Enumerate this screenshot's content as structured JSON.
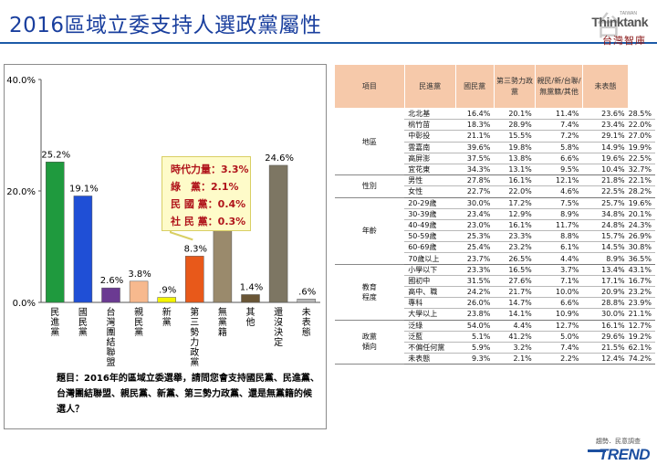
{
  "page": {
    "title": "2016區域立委支持人選政黨屬性",
    "brand_mark": "台",
    "brand_en": "Thinktank",
    "brand_en_small": "TAIWAN",
    "brand_zh": "台灣智庫",
    "footer_source": "趨勢．民意調查",
    "footer_logo": "TREND"
  },
  "chart_data": {
    "type": "bar",
    "categories": [
      "民進黨",
      "國民黨",
      "台灣團結聯盟",
      "親民黨",
      "新黨",
      "第三勢力政黨",
      "無黨籍",
      "其他",
      "還沒決定",
      "未表態"
    ],
    "values": [
      25.2,
      19.1,
      2.6,
      3.8,
      0.9,
      8.3,
      13.4,
      1.4,
      24.6,
      0.6
    ],
    "value_labels": [
      "25.2%",
      "19.1%",
      "2.6%",
      "3.8%",
      ".9%",
      "8.3%",
      "13.4%",
      "1.4%",
      "24.6%",
      ".6%"
    ],
    "colors": [
      "#1f9a3e",
      "#1f4fd6",
      "#6b3a92",
      "#f7b98e",
      "#f4f400",
      "#e8591a",
      "#9a8a6c",
      "#6a5636",
      "#7d7663",
      "#b7b7b7"
    ],
    "ylim": [
      0,
      40
    ],
    "yticks": [
      0,
      20,
      40
    ],
    "ytick_labels": [
      "0.0%",
      "20.0%",
      "40.0%"
    ],
    "grid": false,
    "callout": {
      "lines": [
        "時代力量：3.3%",
        "綠　黨：2.1%",
        "民 國 黨：0.4%",
        "社 民 黨：0.3%"
      ],
      "points_to": "第三勢力政黨"
    },
    "question": "題目：2016年的區域立委選舉，請問您會支持國民黨、民進黨、台灣團結聯盟、親民黨、新黨、第三勢力政黨、還是無黨籍的候選人？"
  },
  "table": {
    "headers": [
      "項目",
      "民進黨",
      "國民黨",
      "第三勢力政黨",
      "親民/新/台聯/無黨籍/其他",
      "未表態"
    ],
    "groups": [
      {
        "name": "地區",
        "rows": [
          [
            "北北基",
            "16.4%",
            "20.1%",
            "11.4%",
            "23.6%",
            "28.5%"
          ],
          [
            "桃竹苗",
            "18.3%",
            "28.9%",
            "7.4%",
            "23.4%",
            "22.0%"
          ],
          [
            "中彰投",
            "21.1%",
            "15.5%",
            "7.2%",
            "29.1%",
            "27.0%"
          ],
          [
            "雲嘉南",
            "39.6%",
            "19.8%",
            "5.8%",
            "14.9%",
            "19.9%"
          ],
          [
            "高屏澎",
            "37.5%",
            "13.8%",
            "6.6%",
            "19.6%",
            "22.5%"
          ],
          [
            "宜花東",
            "34.3%",
            "13.1%",
            "9.5%",
            "10.4%",
            "32.7%"
          ]
        ]
      },
      {
        "name": "性別",
        "rows": [
          [
            "男性",
            "27.8%",
            "16.1%",
            "12.1%",
            "21.8%",
            "22.1%"
          ],
          [
            "女性",
            "22.7%",
            "22.0%",
            "4.6%",
            "22.5%",
            "28.2%"
          ]
        ]
      },
      {
        "name": "年齡",
        "rows": [
          [
            "20-29歲",
            "30.0%",
            "17.2%",
            "7.5%",
            "25.7%",
            "19.6%"
          ],
          [
            "30-39歲",
            "23.4%",
            "12.9%",
            "8.9%",
            "34.8%",
            "20.1%"
          ],
          [
            "40-49歲",
            "23.0%",
            "16.1%",
            "11.7%",
            "24.8%",
            "24.3%"
          ],
          [
            "50-59歲",
            "25.3%",
            "23.3%",
            "8.8%",
            "15.7%",
            "26.9%"
          ],
          [
            "60-69歲",
            "25.4%",
            "23.2%",
            "6.1%",
            "14.5%",
            "30.8%"
          ],
          [
            "70歲以上",
            "23.7%",
            "26.5%",
            "4.4%",
            "8.9%",
            "36.5%"
          ]
        ]
      },
      {
        "name": "教育程度",
        "rows": [
          [
            "小學以下",
            "23.3%",
            "16.5%",
            "3.7%",
            "13.4%",
            "43.1%"
          ],
          [
            "國初中",
            "31.5%",
            "27.6%",
            "7.1%",
            "17.1%",
            "16.7%"
          ],
          [
            "高中、職",
            "24.2%",
            "21.7%",
            "10.0%",
            "20.9%",
            "23.2%"
          ],
          [
            "專科",
            "26.0%",
            "14.7%",
            "6.6%",
            "28.8%",
            "23.9%"
          ],
          [
            "大學以上",
            "23.8%",
            "14.1%",
            "10.9%",
            "30.0%",
            "21.1%"
          ]
        ]
      },
      {
        "name": "政黨傾向",
        "rows": [
          [
            "泛綠",
            "54.0%",
            "4.4%",
            "12.7%",
            "16.1%",
            "12.7%"
          ],
          [
            "泛藍",
            "5.1%",
            "41.2%",
            "5.0%",
            "29.6%",
            "19.2%"
          ],
          [
            "不偏任何黨",
            "5.9%",
            "3.2%",
            "7.4%",
            "21.5%",
            "62.1%"
          ],
          [
            "未表態",
            "9.3%",
            "2.1%",
            "2.2%",
            "12.4%",
            "74.2%"
          ]
        ]
      }
    ]
  }
}
